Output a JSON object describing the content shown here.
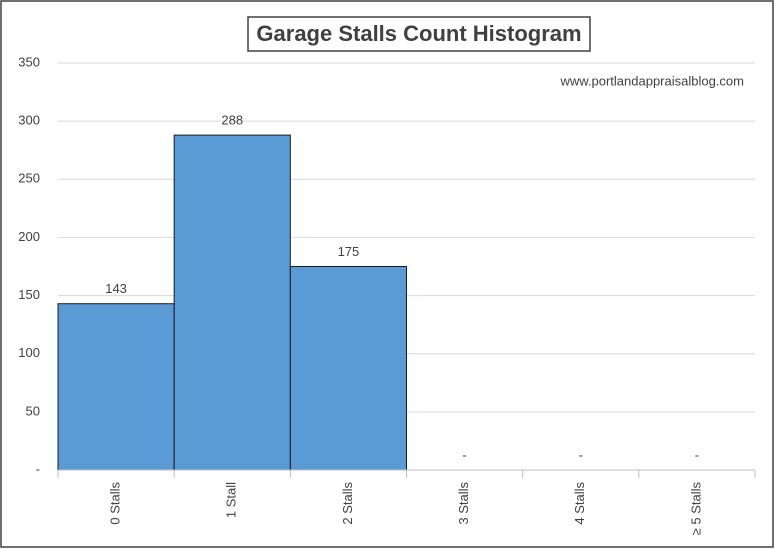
{
  "chart_data": {
    "type": "bar",
    "title": "Garage Stalls Count Histogram",
    "annotation": "www.portlandappraisalblog.com",
    "categories": [
      "0 Stalls",
      "1 Stall",
      "2 Stalls",
      "3 Stalls",
      "4 Stalls",
      "≥ 5 Stalls"
    ],
    "values": [
      143,
      288,
      175,
      0,
      0,
      0
    ],
    "value_labels": [
      "143",
      "288",
      "175",
      "-",
      "-",
      "-"
    ],
    "color": "#5b9bd5",
    "ylim": [
      0,
      350
    ],
    "yticks": [
      {
        "value": 0,
        "label": "-"
      },
      50,
      100,
      150,
      200,
      250,
      300,
      350
    ],
    "grid": true
  }
}
